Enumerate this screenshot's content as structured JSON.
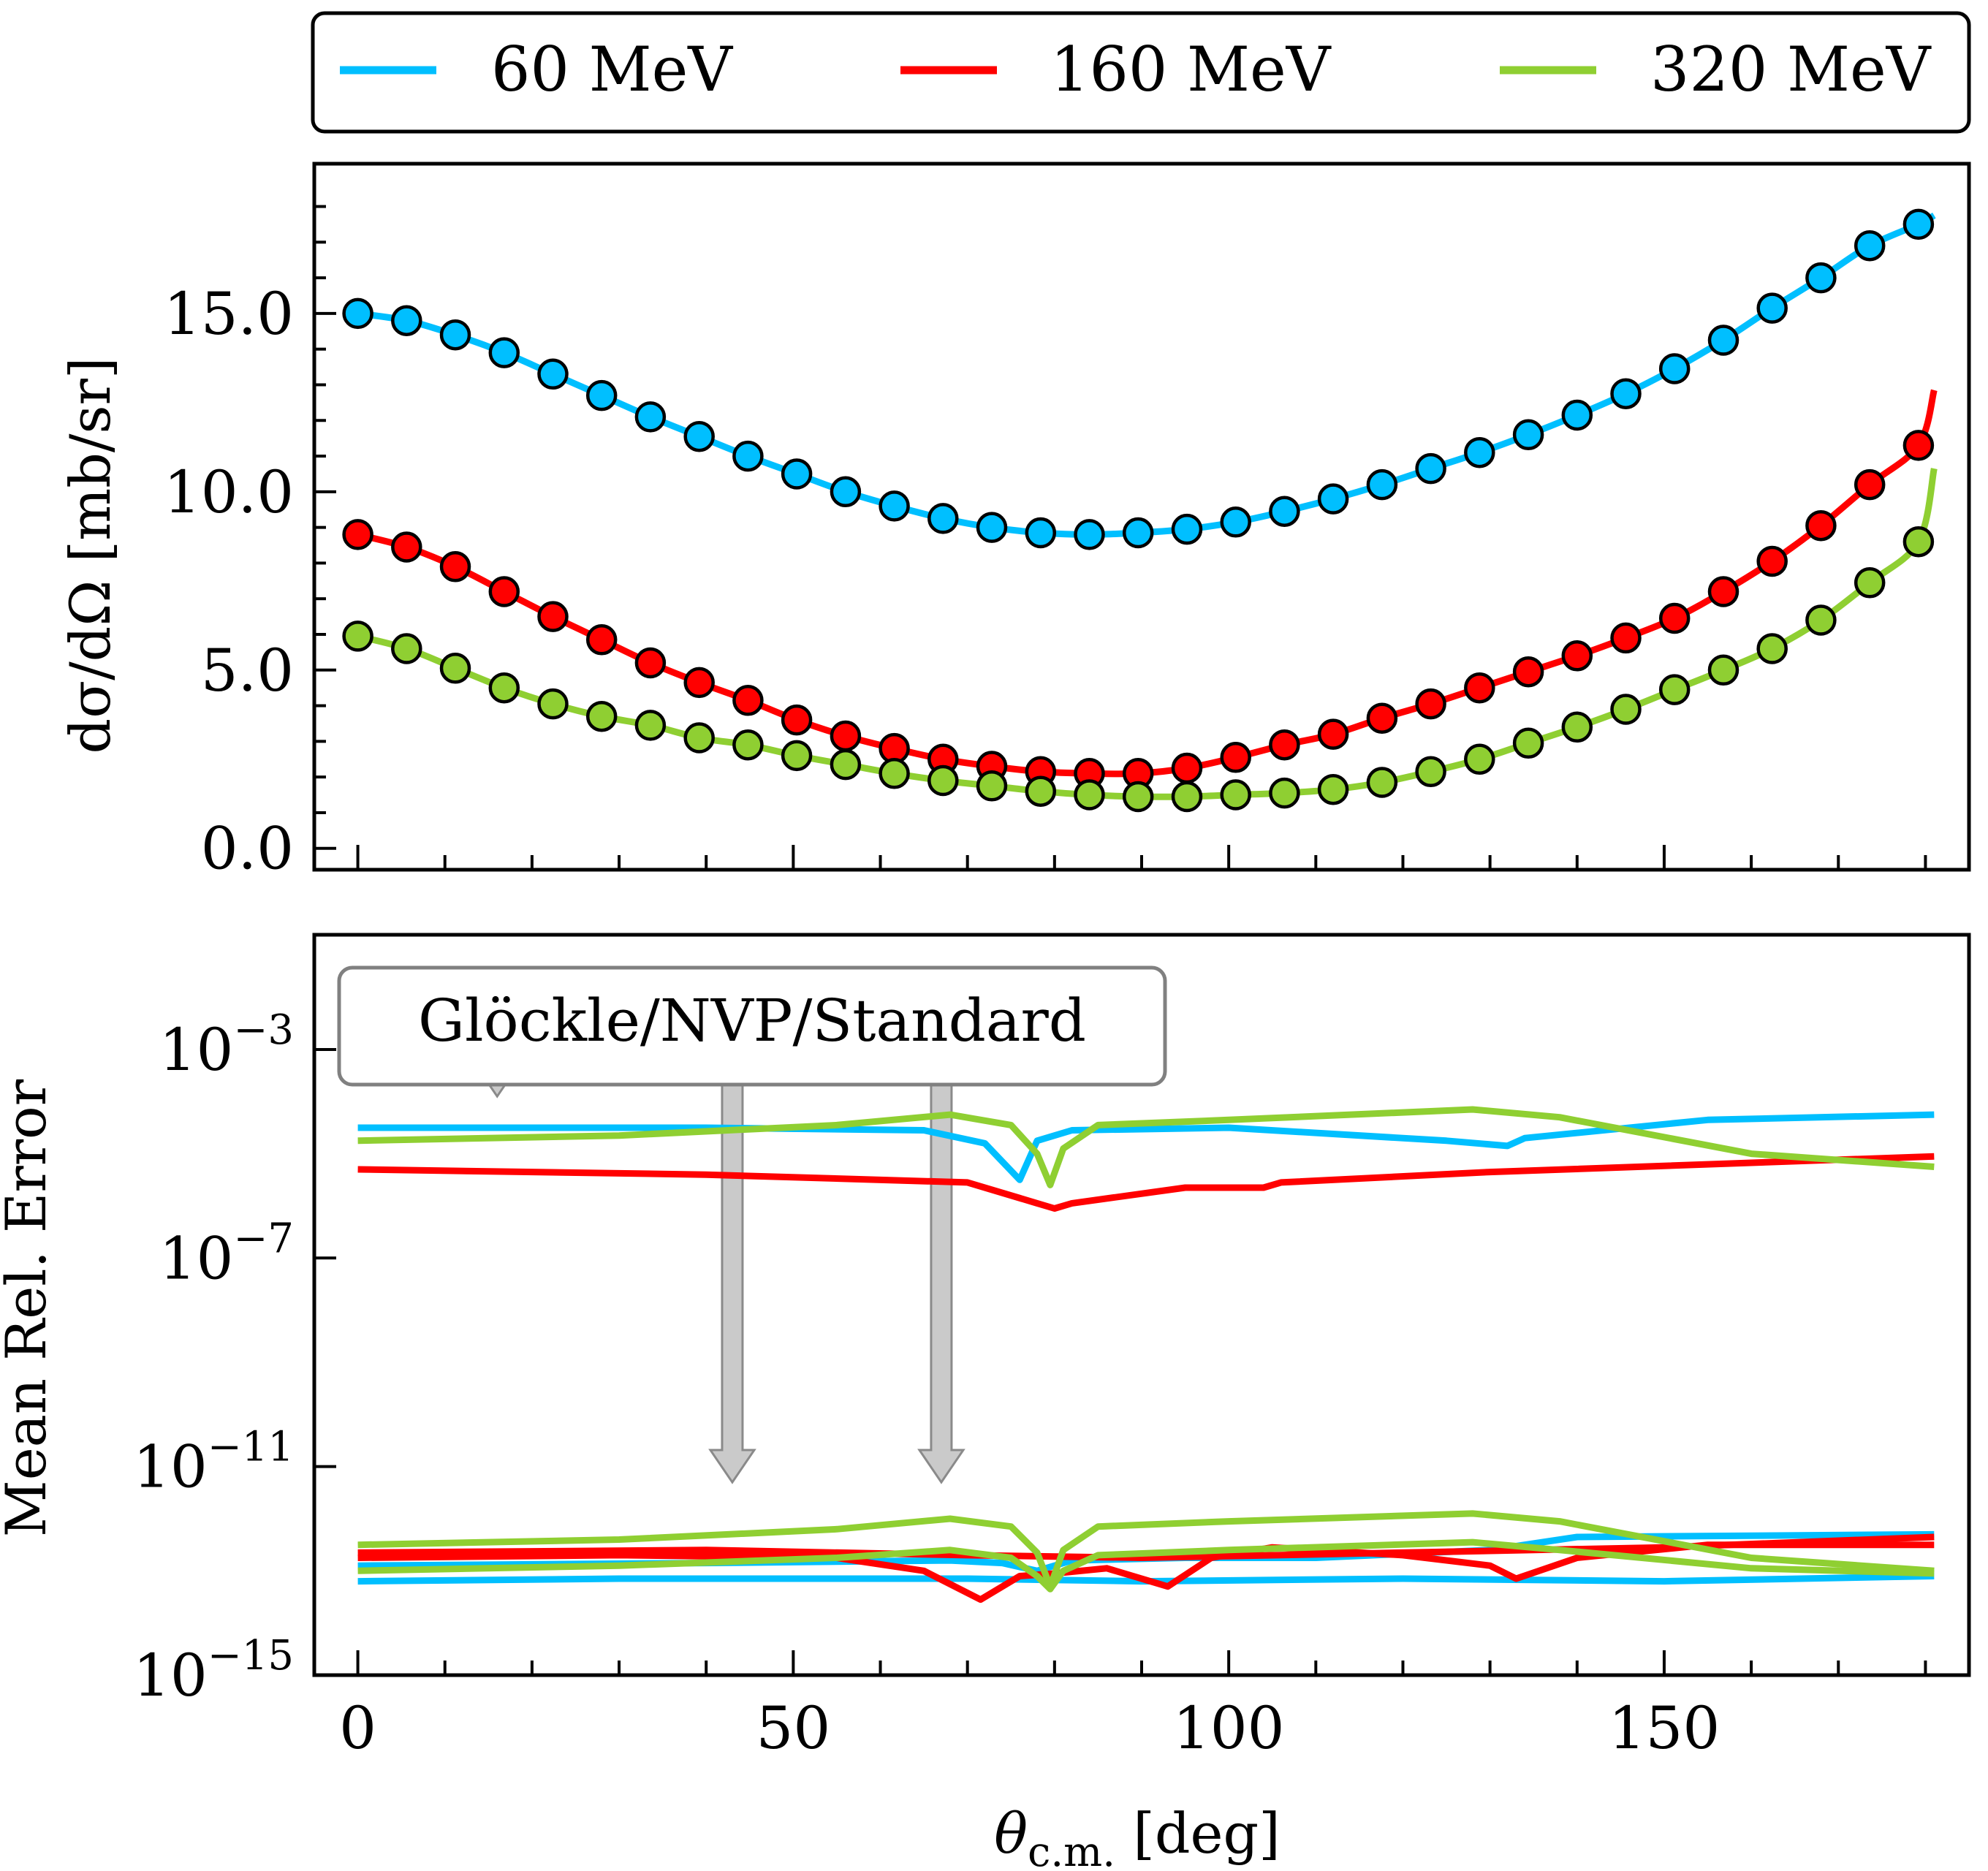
{
  "colors": {
    "s60": "#00bfff",
    "s160": "#ff0000",
    "s320": "#8fcf32"
  },
  "legend": {
    "items": [
      {
        "label": "60 MeV",
        "color": "#00bfff"
      },
      {
        "label": "160 MeV",
        "color": "#ff0000"
      },
      {
        "label": "320 MeV",
        "color": "#8fcf32"
      }
    ]
  },
  "annotation": {
    "label": "Glöckle/NVP/Standard"
  },
  "chart_data": [
    {
      "type": "line",
      "name": "cross-section",
      "ylabel": "dσ/dΩ [mb/sr]",
      "xlabel": "",
      "xlim": [
        -5,
        185
      ],
      "ylim": [
        -0.6,
        19.2
      ],
      "yticks": [
        0,
        5,
        10,
        15
      ],
      "ytick_labels": [
        "0.0",
        "5.0",
        "10.0",
        "15.0"
      ],
      "xticks_minor": [
        0,
        10,
        20,
        30,
        40,
        50,
        60,
        70,
        80,
        90,
        100,
        110,
        120,
        130,
        140,
        150,
        160,
        170,
        180
      ],
      "series": [
        {
          "name": "60 MeV",
          "color": "#00bfff",
          "x": [
            0,
            5.6,
            11.2,
            16.8,
            22.4,
            28,
            33.6,
            39.2,
            44.8,
            50.4,
            56,
            61.6,
            67.2,
            72.8,
            78.4,
            84,
            89.6,
            95.2,
            100.8,
            106.4,
            112,
            117.6,
            123.2,
            128.8,
            134.4,
            140,
            145.6,
            151.2,
            156.8,
            162.4,
            168,
            173.6,
            179.2
          ],
          "y": [
            15.0,
            14.8,
            14.4,
            13.9,
            13.3,
            12.7,
            12.1,
            11.55,
            11.0,
            10.5,
            10.0,
            9.6,
            9.25,
            9.0,
            8.85,
            8.8,
            8.85,
            8.95,
            9.15,
            9.45,
            9.8,
            10.2,
            10.65,
            11.1,
            11.6,
            12.15,
            12.75,
            13.45,
            14.25,
            15.15,
            16.0,
            16.9,
            17.5
          ]
        },
        {
          "name": "160 MeV",
          "color": "#ff0000",
          "x": [
            0,
            5.6,
            11.2,
            16.8,
            22.4,
            28,
            33.6,
            39.2,
            44.8,
            50.4,
            56,
            61.6,
            67.2,
            72.8,
            78.4,
            84,
            89.6,
            95.2,
            100.8,
            106.4,
            112,
            117.6,
            123.2,
            128.8,
            134.4,
            140,
            145.6,
            151.2,
            156.8,
            162.4,
            168,
            173.6,
            179.2
          ],
          "y": [
            8.8,
            8.45,
            7.9,
            7.2,
            6.5,
            5.85,
            5.2,
            4.65,
            4.15,
            3.6,
            3.15,
            2.8,
            2.5,
            2.3,
            2.15,
            2.1,
            2.1,
            2.25,
            2.55,
            2.9,
            3.2,
            3.65,
            4.05,
            4.5,
            4.95,
            5.4,
            5.9,
            6.45,
            7.2,
            8.05,
            9.05,
            10.2,
            11.3
          ]
        },
        {
          "name": "320 MeV",
          "color": "#8fcf32",
          "x": [
            0,
            5.6,
            11.2,
            16.8,
            22.4,
            28,
            33.6,
            39.2,
            44.8,
            50.4,
            56,
            61.6,
            67.2,
            72.8,
            78.4,
            84,
            89.6,
            95.2,
            100.8,
            106.4,
            112,
            117.6,
            123.2,
            128.8,
            134.4,
            140,
            145.6,
            151.2,
            156.8,
            162.4,
            168,
            173.6,
            179.2
          ],
          "y": [
            5.95,
            5.6,
            5.05,
            4.5,
            4.05,
            3.7,
            3.45,
            3.1,
            2.9,
            2.6,
            2.35,
            2.1,
            1.9,
            1.75,
            1.6,
            1.5,
            1.45,
            1.45,
            1.5,
            1.55,
            1.65,
            1.85,
            2.15,
            2.5,
            2.95,
            3.4,
            3.9,
            4.45,
            5.0,
            5.6,
            6.4,
            7.45,
            8.6
          ]
        }
      ],
      "curves_extension": {
        "x_end": 181,
        "y_end": [
          17.75,
          12.85,
          10.65
        ]
      }
    },
    {
      "type": "line",
      "name": "mean-relative-error",
      "ylabel": "Mean Rel. Error",
      "xlabel": "θc.m. [deg]",
      "xlim": [
        -5,
        185
      ],
      "ylim_log10": [
        -15,
        -0.8
      ],
      "yticks_log10": [
        -15,
        -11,
        -7,
        -3
      ],
      "ytick_labels": [
        "10−15",
        "10−11",
        "10−7",
        "10−3"
      ],
      "xticks": [
        0,
        50,
        100,
        150
      ],
      "xtick_labels": [
        "0",
        "50",
        "100",
        "150"
      ],
      "series": [
        {
          "name": "60 MeV (standard)",
          "color": "#00bfff",
          "x": [
            0,
            40,
            65,
            72,
            76,
            78,
            82,
            100,
            125,
            132,
            134,
            155,
            181
          ],
          "log10y": [
            -4.5,
            -4.5,
            -4.55,
            -4.8,
            -5.5,
            -4.75,
            -4.55,
            -4.5,
            -4.75,
            -4.85,
            -4.7,
            -4.35,
            -4.25
          ]
        },
        {
          "name": "160 MeV (standard)",
          "color": "#ff0000",
          "x": [
            0,
            40,
            70,
            78,
            80,
            82,
            95,
            104,
            106,
            130,
            181
          ],
          "log10y": [
            -5.3,
            -5.4,
            -5.55,
            -5.95,
            -6.05,
            -5.95,
            -5.65,
            -5.65,
            -5.55,
            -5.35,
            -5.05
          ]
        },
        {
          "name": "320 MeV (standard)",
          "color": "#8fcf32",
          "x": [
            0,
            30,
            55,
            68,
            75,
            78,
            79.5,
            81,
            85,
            100,
            128,
            138,
            160,
            181
          ],
          "log10y": [
            -4.75,
            -4.65,
            -4.45,
            -4.25,
            -4.45,
            -5.0,
            -5.6,
            -4.9,
            -4.45,
            -4.35,
            -4.15,
            -4.3,
            -5.0,
            -5.25
          ]
        },
        {
          "name": "60 MeV (Glöckle/NVP)",
          "color": "#00bfff",
          "x": [
            0,
            30,
            70,
            90,
            120,
            150,
            181
          ],
          "log10y": [
            -13.2,
            -13.15,
            -13.15,
            -13.2,
            -13.15,
            -13.2,
            -13.1
          ]
        },
        {
          "name": "60 MeV (Glöckle/NVP) b",
          "color": "#00bfff",
          "x": [
            0,
            40,
            68,
            74,
            78,
            82,
            95,
            110,
            130,
            140,
            181
          ],
          "log10y": [
            -12.9,
            -12.85,
            -12.8,
            -12.85,
            -13.0,
            -12.8,
            -12.75,
            -12.75,
            -12.6,
            -12.35,
            -12.3
          ]
        },
        {
          "name": "160 MeV (Glöckle/NVP)",
          "color": "#ff0000",
          "x": [
            0,
            30,
            55,
            65,
            71.5,
            76,
            80,
            86,
            93,
            98,
            105,
            120,
            130,
            133,
            140,
            155,
            181
          ],
          "log10y": [
            -12.75,
            -12.7,
            -12.75,
            -13.0,
            -13.55,
            -13.1,
            -13.05,
            -12.95,
            -13.3,
            -12.75,
            -12.55,
            -12.7,
            -12.9,
            -13.15,
            -12.75,
            -12.5,
            -12.5
          ]
        },
        {
          "name": "160 MeV (Glöckle/NVP) b",
          "color": "#ff0000",
          "x": [
            0,
            40,
            70,
            90,
            120,
            150,
            181
          ],
          "log10y": [
            -12.65,
            -12.6,
            -12.7,
            -12.75,
            -12.65,
            -12.55,
            -12.35
          ]
        },
        {
          "name": "320 MeV (Glöckle/NVP)",
          "color": "#8fcf32",
          "x": [
            0,
            30,
            55,
            68,
            75,
            78,
            79.5,
            81,
            85,
            100,
            128,
            138,
            160,
            181
          ],
          "log10y": [
            -12.5,
            -12.4,
            -12.2,
            -12.0,
            -12.15,
            -12.65,
            -13.3,
            -12.6,
            -12.15,
            -12.05,
            -11.9,
            -12.05,
            -12.75,
            -13.0
          ]
        },
        {
          "name": "320 MeV (Glöckle/NVP) b",
          "color": "#8fcf32",
          "x": [
            0,
            30,
            55,
            68,
            75,
            78,
            79.5,
            81,
            85,
            100,
            128,
            138,
            160,
            181
          ],
          "log10y": [
            -13.0,
            -12.9,
            -12.75,
            -12.6,
            -12.75,
            -13.1,
            -13.35,
            -13.0,
            -12.7,
            -12.6,
            -12.45,
            -12.6,
            -12.95,
            -13.05
          ]
        }
      ],
      "arrows": [
        {
          "x": 16,
          "from_log10": -2.9,
          "to_log10": -3.9
        },
        {
          "x": 43,
          "from_log10": -2.9,
          "to_log10": -11.3
        },
        {
          "x": 67,
          "from_log10": -2.9,
          "to_log10": -11.3
        }
      ]
    }
  ]
}
